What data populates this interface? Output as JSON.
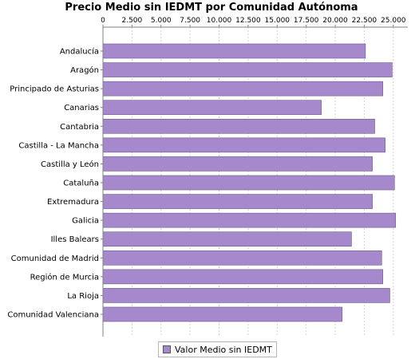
{
  "chart_data": {
    "type": "bar",
    "orientation": "horizontal",
    "title": "Precio Medio sin IEDMT por Comunidad Autónoma",
    "categories": [
      "Andalucía",
      "Aragón",
      "Principado de Asturias",
      "Canarias",
      "Cantabria",
      "Castilla - La Mancha",
      "Castilla y León",
      "Cataluña",
      "Extremadura",
      "Galicia",
      "Illes Balears",
      "Comunidad de Madrid",
      "Región de Murcia",
      "La Rioja",
      "Comunidad Valenciana"
    ],
    "series": [
      {
        "name": "Valor Medio sin IEDMT",
        "color": "#a688cc",
        "values": [
          22600,
          24900,
          24100,
          18800,
          23400,
          24300,
          23200,
          25100,
          23200,
          25200,
          21400,
          24000,
          24100,
          24700,
          20600
        ]
      }
    ],
    "xlim": [
      0,
      26250
    ],
    "xticks": [
      0,
      2500,
      5000,
      7500,
      10000,
      12500,
      15000,
      17500,
      20000,
      22500,
      25000
    ],
    "xtick_labels": [
      "0",
      "2.500",
      "5.000",
      "7.500",
      "10.000",
      "12.500",
      "15.000",
      "17.500",
      "20.000",
      "22.500",
      "25.000"
    ],
    "axis_position": "top",
    "grid": true,
    "legend_position": "bottom"
  }
}
